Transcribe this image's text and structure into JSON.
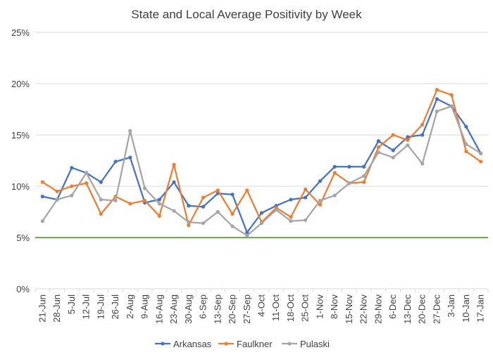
{
  "chart_data": {
    "type": "line",
    "title": "State and Local Average Positivity by Week",
    "xlabel": "",
    "ylabel": "",
    "ylim": [
      0,
      25
    ],
    "yticks": [
      0,
      5,
      10,
      15,
      20,
      25
    ],
    "ytick_labels": [
      "0%",
      "5%",
      "10%",
      "15%",
      "20%",
      "25%"
    ],
    "categories": [
      "21-Jun",
      "28-Jun",
      "5-Jul",
      "12-Jul",
      "19-Jul",
      "26-Jul",
      "2-Aug",
      "9-Aug",
      "16-Aug",
      "23-Aug",
      "30-Aug",
      "6-Sep",
      "13-Sep",
      "20-Sep",
      "27-Sep",
      "4-Oct",
      "11-Oct",
      "18-Oct",
      "25-Oct",
      "1-Nov",
      "8-Nov",
      "15-Nov",
      "22-Nov",
      "29-Nov",
      "6-Dec",
      "13-Dec",
      "20-Dec",
      "27-Dec",
      "3-Jan",
      "10-Jan",
      "17-Jan"
    ],
    "series": [
      {
        "name": "Arkansas",
        "color": "#4472c4",
        "values": [
          9.0,
          8.7,
          11.8,
          11.3,
          10.4,
          12.4,
          12.8,
          8.4,
          8.7,
          10.4,
          8.1,
          8.0,
          9.3,
          9.2,
          5.5,
          7.4,
          8.1,
          8.7,
          8.9,
          10.5,
          11.9,
          11.9,
          11.9,
          14.4,
          13.5,
          14.8,
          15.0,
          18.5,
          17.8,
          15.8,
          13.2
        ]
      },
      {
        "name": "Faulkner",
        "color": "#ed7d31",
        "values": [
          10.4,
          9.5,
          10.0,
          10.3,
          7.3,
          9.0,
          8.3,
          8.6,
          7.1,
          12.1,
          6.2,
          8.9,
          9.6,
          7.3,
          9.6,
          6.5,
          7.9,
          7.0,
          9.7,
          8.2,
          11.3,
          10.3,
          10.4,
          13.8,
          15.0,
          14.5,
          16.0,
          19.4,
          18.9,
          13.4,
          12.4
        ]
      },
      {
        "name": "Pulaski",
        "color": "#a5a5a5",
        "values": [
          6.6,
          8.7,
          9.1,
          11.3,
          8.7,
          8.6,
          15.4,
          9.8,
          8.3,
          7.6,
          6.5,
          6.4,
          7.5,
          6.1,
          5.2,
          6.4,
          7.7,
          6.6,
          6.7,
          8.6,
          9.1,
          10.3,
          11.0,
          13.3,
          12.8,
          14.0,
          12.2,
          17.3,
          17.8,
          14.1,
          13.2
        ]
      }
    ],
    "reference_line": {
      "value": 5,
      "color": "#70ad47"
    },
    "legend_position": "bottom",
    "grid": true
  }
}
